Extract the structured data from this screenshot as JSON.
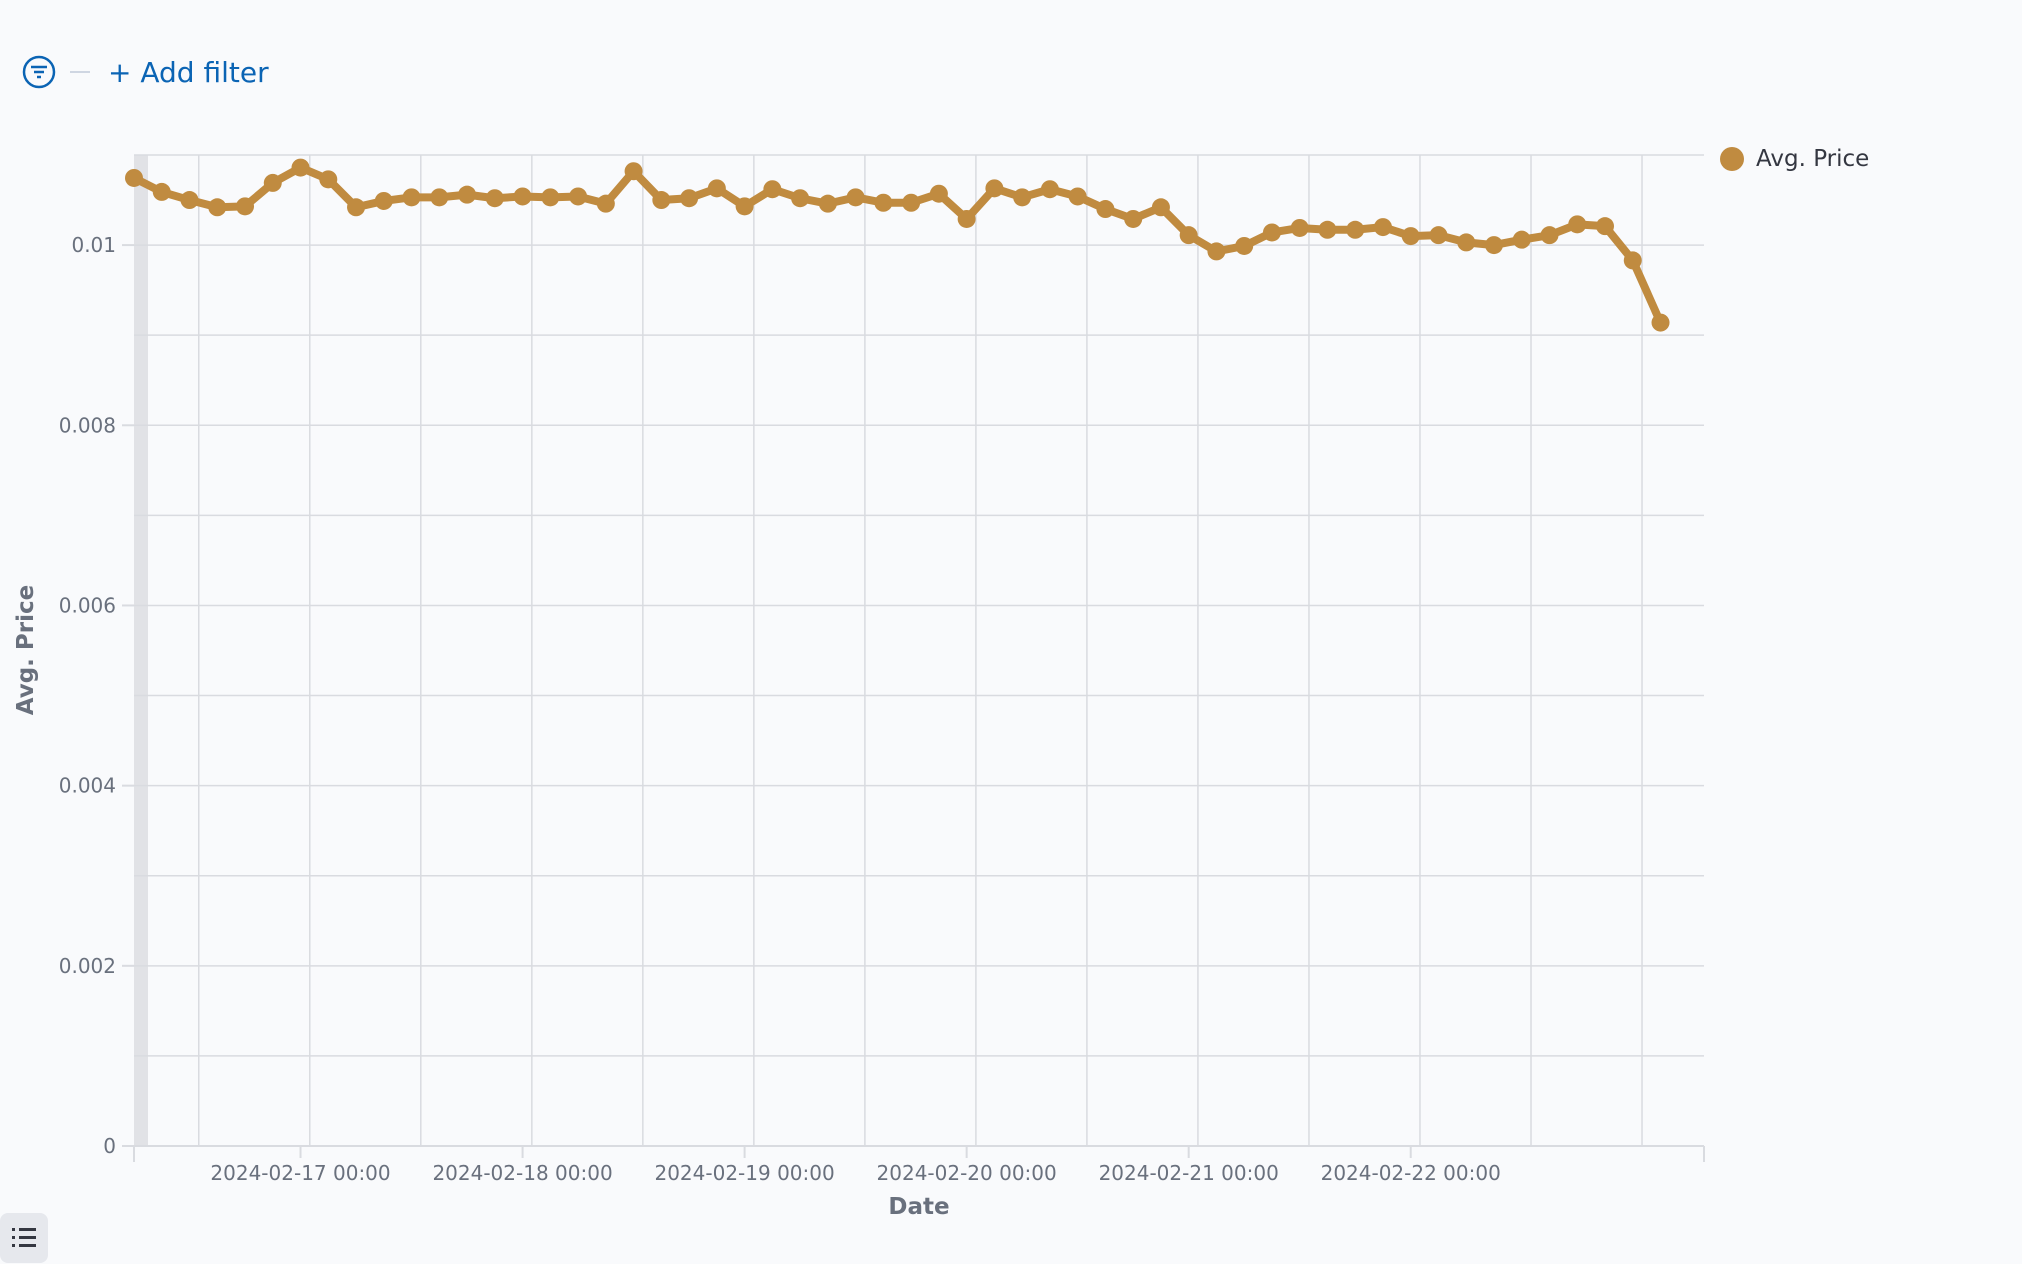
{
  "filter_bar": {
    "add_filter_label": "+ Add filter"
  },
  "legend": {
    "label": "Avg. Price"
  },
  "colors": {
    "series": "#c08b40",
    "accent": "#0b64b4",
    "grid": "#d9dbe0",
    "text": "#69707d"
  },
  "chart_data": {
    "type": "line",
    "title": "",
    "xlabel": "Date",
    "ylabel": "Avg. Price",
    "x_unit": "hours since 2024-02-16 00:00",
    "xlim": [
      6,
      175.7
    ],
    "ylim": [
      0,
      0.011
    ],
    "grid": true,
    "legend_position": "right",
    "x_ticks": [
      {
        "value": 24,
        "label": "2024-02-17 00:00"
      },
      {
        "value": 48,
        "label": "2024-02-18 00:00"
      },
      {
        "value": 72,
        "label": "2024-02-19 00:00"
      },
      {
        "value": 96,
        "label": "2024-02-20 00:00"
      },
      {
        "value": 120,
        "label": "2024-02-21 00:00"
      },
      {
        "value": 144,
        "label": "2024-02-22 00:00"
      }
    ],
    "y_ticks": [
      {
        "value": 0,
        "label": "0"
      },
      {
        "value": 0.002,
        "label": "0.002"
      },
      {
        "value": 0.004,
        "label": "0.004"
      },
      {
        "value": 0.006,
        "label": "0.006"
      },
      {
        "value": 0.008,
        "label": "0.008"
      },
      {
        "value": 0.01,
        "label": "0.01"
      }
    ],
    "series": [
      {
        "name": "Avg. Price",
        "x_step_hours": 3,
        "x_start": 6,
        "values": [
          0.010745,
          0.01059,
          0.0105,
          0.01042,
          0.01043,
          0.01069,
          0.01086,
          0.01073,
          0.01042,
          0.01049,
          0.01053,
          0.01053,
          0.01056,
          0.01052,
          0.01054,
          0.01053,
          0.01054,
          0.01046,
          0.01082,
          0.0105,
          0.01052,
          0.01063,
          0.01043,
          0.01062,
          0.01052,
          0.01046,
          0.01053,
          0.01047,
          0.01047,
          0.01057,
          0.01029,
          0.01063,
          0.01053,
          0.01062,
          0.01054,
          0.0104,
          0.01029,
          0.01042,
          0.01011,
          0.00993,
          0.00999,
          0.01014,
          0.01019,
          0.01017,
          0.01017,
          0.0102,
          0.0101,
          0.01011,
          0.01003,
          0.01,
          0.01006,
          0.01011,
          0.01023,
          0.01021,
          0.00983,
          0.00914
        ]
      }
    ]
  }
}
